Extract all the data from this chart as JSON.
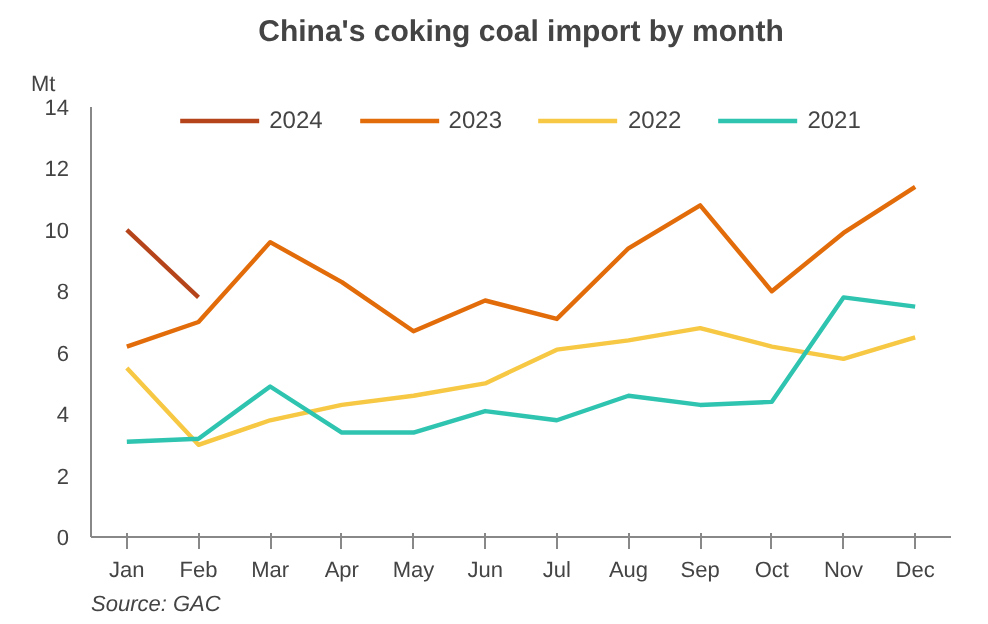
{
  "chart_data": {
    "type": "line",
    "title": "China's coking coal import by month",
    "ylabel": "Mt",
    "categories": [
      "Jan",
      "Feb",
      "Mar",
      "Apr",
      "May",
      "Jun",
      "Jul",
      "Aug",
      "Sep",
      "Oct",
      "Nov",
      "Dec"
    ],
    "series": [
      {
        "name": "2024",
        "color": "#b5441b",
        "values": [
          10.0,
          7.8,
          null,
          null,
          null,
          null,
          null,
          null,
          null,
          null,
          null,
          null
        ]
      },
      {
        "name": "2023",
        "color": "#e36c0a",
        "values": [
          6.2,
          7.0,
          9.6,
          8.3,
          6.7,
          7.7,
          7.1,
          9.4,
          10.8,
          8.0,
          9.9,
          11.4
        ]
      },
      {
        "name": "2022",
        "color": "#f7c843",
        "values": [
          5.5,
          3.0,
          3.8,
          4.3,
          4.6,
          5.0,
          6.1,
          6.4,
          6.8,
          6.2,
          5.8,
          6.5
        ]
      },
      {
        "name": "2021",
        "color": "#2ec4b0",
        "values": [
          3.1,
          3.2,
          4.9,
          3.4,
          3.4,
          4.1,
          3.8,
          4.6,
          4.3,
          4.4,
          7.8,
          7.5
        ]
      }
    ],
    "ylim": [
      0,
      14
    ],
    "yticks": [
      0,
      2,
      4,
      6,
      8,
      10,
      12,
      14
    ],
    "grid": false,
    "legend": "top",
    "line_style": "solid",
    "annotations": [
      "Source: GAC"
    ]
  }
}
